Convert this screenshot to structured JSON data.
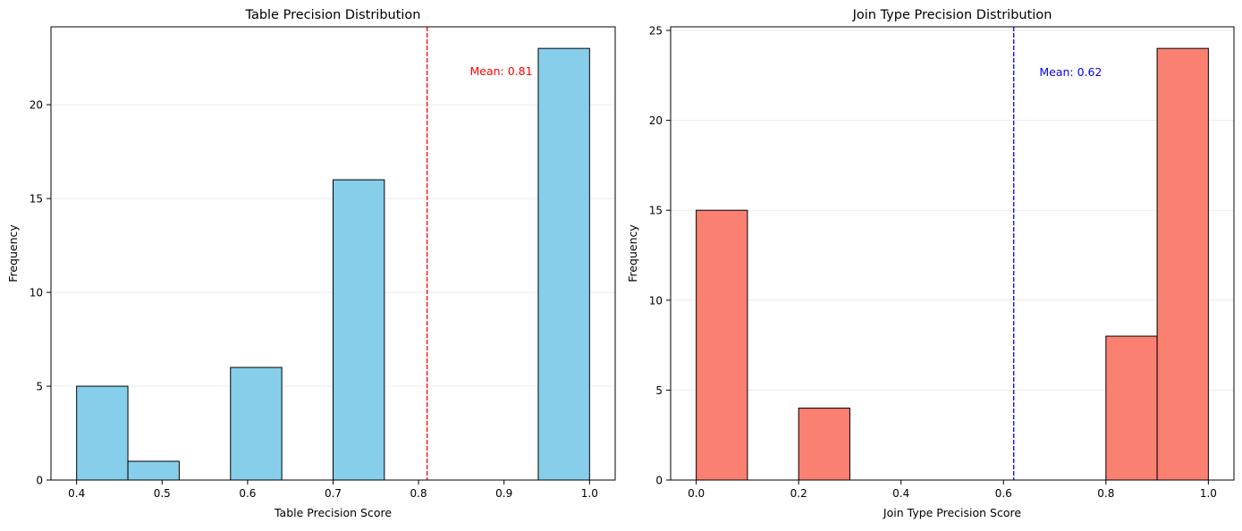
{
  "chart_data": [
    {
      "type": "bar",
      "title": "Table Precision Distribution",
      "xlabel": "Table Precision Score",
      "ylabel": "Frequency",
      "xlim": [
        0.37,
        1.03
      ],
      "ylim": [
        0,
        24.15
      ],
      "xticks": [
        0.4,
        0.5,
        0.6,
        0.7,
        0.8,
        0.9,
        1.0
      ],
      "xtick_labels": [
        "0.4",
        "0.5",
        "0.6",
        "0.7",
        "0.8",
        "0.9",
        "1.0"
      ],
      "yticks": [
        0,
        5,
        10,
        15,
        20
      ],
      "ytick_labels": [
        "0",
        "5",
        "10",
        "15",
        "20"
      ],
      "grid": "y",
      "bar_color": "#87CEEB",
      "bins": [
        {
          "x0": 0.4,
          "x1": 0.46,
          "count": 5
        },
        {
          "x0": 0.46,
          "x1": 0.52,
          "count": 1
        },
        {
          "x0": 0.52,
          "x1": 0.58,
          "count": 0
        },
        {
          "x0": 0.58,
          "x1": 0.64,
          "count": 6
        },
        {
          "x0": 0.64,
          "x1": 0.7,
          "count": 0
        },
        {
          "x0": 0.7,
          "x1": 0.76,
          "count": 16
        },
        {
          "x0": 0.76,
          "x1": 0.82,
          "count": 0
        },
        {
          "x0": 0.82,
          "x1": 0.88,
          "count": 0
        },
        {
          "x0": 0.88,
          "x1": 0.94,
          "count": 0
        },
        {
          "x0": 0.94,
          "x1": 1.0,
          "count": 23
        }
      ],
      "mean": 0.81,
      "mean_color": "#FF0000",
      "mean_label": "Mean: 0.81",
      "mean_label_pos": {
        "x": 0.86,
        "y": 21.8
      }
    },
    {
      "type": "bar",
      "title": "Join Type Precision Distribution",
      "xlabel": "Join Type Precision Score",
      "ylabel": "Frequency",
      "xlim": [
        -0.05,
        1.05
      ],
      "ylim": [
        0,
        25.2
      ],
      "xticks": [
        0.0,
        0.2,
        0.4,
        0.6,
        0.8,
        1.0
      ],
      "xtick_labels": [
        "0.0",
        "0.2",
        "0.4",
        "0.6",
        "0.8",
        "1.0"
      ],
      "yticks": [
        0,
        5,
        10,
        15,
        20,
        25
      ],
      "ytick_labels": [
        "0",
        "5",
        "10",
        "15",
        "20",
        "25"
      ],
      "grid": "y",
      "bar_color": "#FA8072",
      "bins": [
        {
          "x0": 0.0,
          "x1": 0.1,
          "count": 15
        },
        {
          "x0": 0.1,
          "x1": 0.2,
          "count": 0
        },
        {
          "x0": 0.2,
          "x1": 0.3,
          "count": 4
        },
        {
          "x0": 0.3,
          "x1": 0.4,
          "count": 0
        },
        {
          "x0": 0.4,
          "x1": 0.5,
          "count": 0
        },
        {
          "x0": 0.5,
          "x1": 0.6,
          "count": 0
        },
        {
          "x0": 0.6,
          "x1": 0.7,
          "count": 0
        },
        {
          "x0": 0.7,
          "x1": 0.8,
          "count": 0
        },
        {
          "x0": 0.8,
          "x1": 0.9,
          "count": 8
        },
        {
          "x0": 0.9,
          "x1": 1.0,
          "count": 24
        }
      ],
      "mean": 0.62,
      "mean_color": "#0000FF",
      "mean_label": "Mean: 0.62",
      "mean_label_pos": {
        "x": 0.67,
        "y": 22.7
      }
    }
  ]
}
